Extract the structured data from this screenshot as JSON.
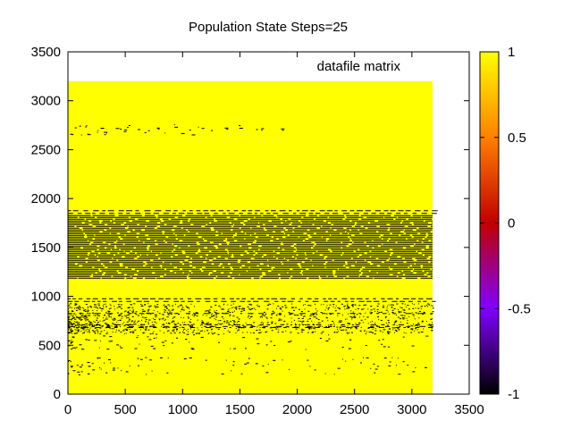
{
  "chart_data": {
    "type": "heatmap",
    "title": "Population State Steps=25",
    "legend_label": "datafile matrix",
    "xlabel": "",
    "ylabel": "",
    "xlim": [
      0,
      3500
    ],
    "ylim": [
      0,
      3500
    ],
    "x_ticks": [
      "0",
      "500",
      "1000",
      "1500",
      "2000",
      "2500",
      "3000",
      "3500"
    ],
    "y_ticks": [
      "0",
      "500",
      "1000",
      "1500",
      "2000",
      "2500",
      "3000",
      "3500"
    ],
    "matrix_extent": {
      "x": [
        0,
        3180
      ],
      "y": [
        0,
        3200
      ]
    },
    "colorbar": {
      "range": [
        -1,
        1
      ],
      "ticks": [
        "-1",
        "-0.5",
        "0",
        "0.5",
        "1"
      ],
      "palette": [
        "#000000",
        "#8000ff",
        "#c00000",
        "#ff8000",
        "#ffff00"
      ]
    },
    "base_value": 1,
    "base_color": "#ffff00",
    "defect_value": -1,
    "defect_color": "#000000",
    "bands": [
      {
        "y": [
          1180,
          1830
        ],
        "pattern": "dense-stripes",
        "value": -1
      },
      {
        "y": [
          1850,
          1880
        ],
        "pattern": "dashed-lines",
        "value": -1
      },
      {
        "y": [
          930,
          980
        ],
        "pattern": "dashed-lines",
        "value": -1
      },
      {
        "y": [
          620,
          930
        ],
        "pattern": "dense-scatter",
        "value": -1
      },
      {
        "y": [
          460,
          620
        ],
        "pattern": "sparse-scatter",
        "value": -1
      },
      {
        "y": [
          200,
          380
        ],
        "pattern": "sparse-scatter",
        "value": -1
      },
      {
        "y": [
          2650,
          2760
        ],
        "pattern": "sparse-dashes",
        "value": -1
      }
    ]
  }
}
